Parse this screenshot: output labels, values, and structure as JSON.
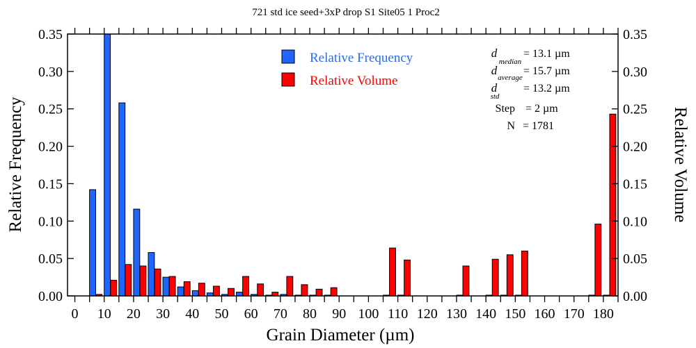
{
  "chart_data": {
    "type": "bar",
    "title": "721 std ice seed+3xP drop S1 Site05 1 Proc2",
    "xlabel": "Grain Diameter (µm)",
    "ylabel": "Relative Frequency",
    "ylabel_right": "Relative Volume",
    "xlim": [
      -2.5,
      185
    ],
    "ylim": [
      0,
      0.35
    ],
    "xticks": [
      0,
      10,
      20,
      30,
      40,
      50,
      60,
      70,
      80,
      90,
      100,
      110,
      120,
      130,
      140,
      150,
      160,
      170,
      180
    ],
    "yticks": [
      "0.00",
      "0.05",
      "0.10",
      "0.15",
      "0.20",
      "0.25",
      "0.30",
      "0.35"
    ],
    "bin_width": 5,
    "bin_starts": [
      5,
      10,
      15,
      20,
      25,
      30,
      35,
      40,
      45,
      50,
      55,
      60,
      65,
      70,
      75,
      80,
      85,
      105,
      110,
      130,
      140,
      145,
      150,
      175,
      180
    ],
    "series": [
      {
        "name": "Relative Frequency",
        "color": "#1f66ff",
        "values": [
          0.142,
          0.35,
          0.258,
          0.116,
          0.058,
          0.025,
          0.012,
          0.007,
          0.004,
          0.002,
          0.005,
          0.002,
          0.001,
          0.002,
          0.001,
          0.001,
          0.001,
          0.001,
          0.001,
          0.001,
          0.001,
          0.001,
          0.001,
          0.001,
          0.001
        ]
      },
      {
        "name": "Relative Volume",
        "color": "#ff0000",
        "values": [
          0.002,
          0.021,
          0.042,
          0.04,
          0.036,
          0.026,
          0.019,
          0.017,
          0.013,
          0.01,
          0.026,
          0.016,
          0.005,
          0.026,
          0.015,
          0.009,
          0.011,
          0.064,
          0.048,
          0.04,
          0.049,
          0.055,
          0.06,
          0.096,
          0.243
        ]
      }
    ],
    "legend_position": "top-center",
    "stats": [
      {
        "symbol": "d",
        "sub": "median",
        "value": "=  13.1 µm"
      },
      {
        "symbol": "d",
        "sub": "average",
        "value": "=  15.7 µm"
      },
      {
        "symbol": "d",
        "sub": "std",
        "value": "=  13.2 µm"
      },
      {
        "symbol": "Step",
        "sub": "",
        "value": "=  2 µm"
      },
      {
        "symbol": "N",
        "sub": "",
        "value": "= 1781"
      }
    ]
  }
}
